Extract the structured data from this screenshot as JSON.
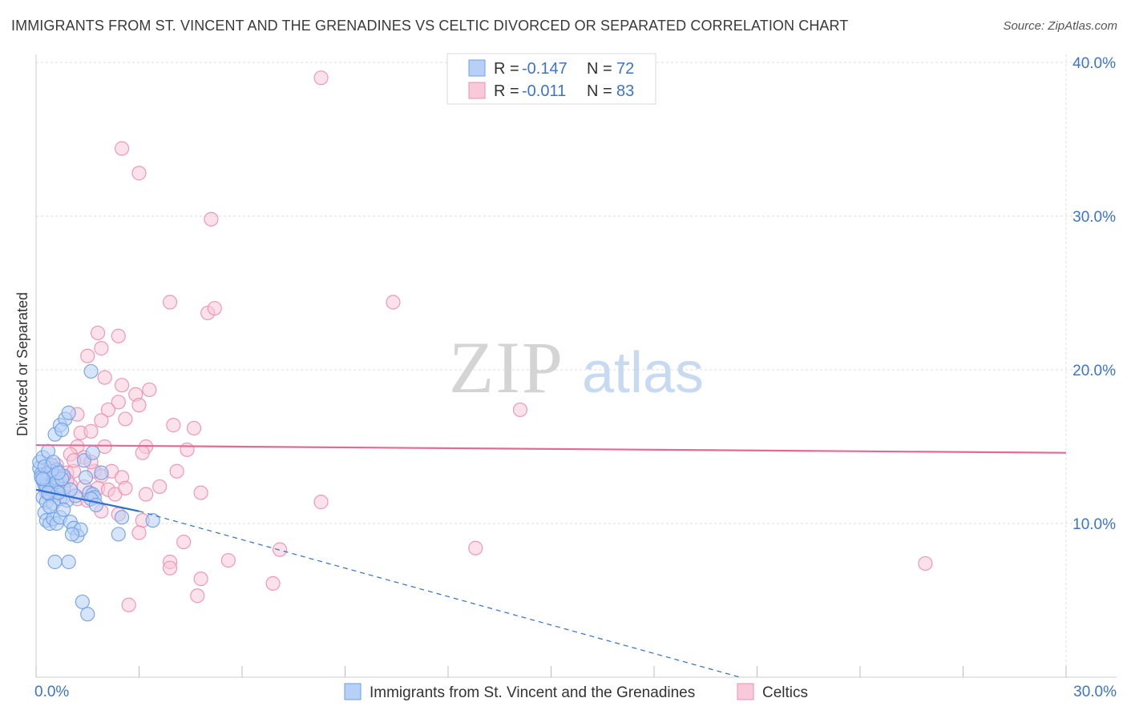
{
  "header": {
    "title": "IMMIGRANTS FROM ST. VINCENT AND THE GRENADINES VS CELTIC DIVORCED OR SEPARATED CORRELATION CHART",
    "source": "Source: ZipAtlas.com"
  },
  "watermark": {
    "zip": "ZIP",
    "atlas": "atlas"
  },
  "colors": {
    "blue": "#6f9fe6",
    "blue_fill": "#b7d0f5",
    "blue_line": "#2f6fd0",
    "pink": "#ec8fae",
    "pink_fill": "#f8c9d9",
    "pink_line": "#e46a94",
    "tick_text": "#3d74c7",
    "grid": "#dcdcdc"
  },
  "legend_top": {
    "rows": [
      {
        "r_label": "R = ",
        "r_value": "-0.147",
        "n_label": "N = ",
        "n_value": "72",
        "series": "blue"
      },
      {
        "r_label": "R = ",
        "r_value": "-0.011",
        "n_label": "N = ",
        "n_value": "83",
        "series": "pink"
      }
    ]
  },
  "legend_bottom": [
    {
      "label": "Immigrants from St. Vincent and the Grenadines",
      "series": "blue"
    },
    {
      "label": "Celtics",
      "series": "pink"
    }
  ],
  "chart_data": {
    "type": "scatter",
    "title": "IMMIGRANTS FROM ST. VINCENT AND THE GRENADINES VS CELTIC DIVORCED OR SEPARATED CORRELATION CHART",
    "xlabel": "",
    "ylabel": "Divorced or Separated",
    "xlim": [
      0,
      30
    ],
    "ylim": [
      0,
      40
    ],
    "x_tick_labels": [
      "0.0%",
      "30.0%"
    ],
    "y_ticks": [
      10,
      20,
      30,
      40
    ],
    "y_tick_labels": [
      "10.0%",
      "20.0%",
      "30.0%",
      "40.0%"
    ],
    "grid": true,
    "legend_position": "top-center",
    "series": [
      {
        "name": "Immigrants from St. Vincent and the Grenadines",
        "color": "blue",
        "R": -0.147,
        "N": 72,
        "trend": {
          "x0": 0,
          "y0": 12.2,
          "x1": 3.0,
          "y1": 10.8,
          "dashed_to_x": 20.5,
          "dashed_to_y": 0
        },
        "points": [
          [
            0.1,
            13.6
          ],
          [
            0.15,
            13.2
          ],
          [
            0.2,
            12.8
          ],
          [
            0.25,
            12.5
          ],
          [
            0.3,
            12.9
          ],
          [
            0.35,
            13.3
          ],
          [
            0.4,
            12.2
          ],
          [
            0.45,
            12.6
          ],
          [
            0.5,
            13.0
          ],
          [
            0.55,
            12.4
          ],
          [
            0.6,
            12.1
          ],
          [
            0.2,
            11.7
          ],
          [
            0.3,
            11.4
          ],
          [
            0.4,
            11.9
          ],
          [
            0.5,
            11.3
          ],
          [
            0.7,
            11.6
          ],
          [
            0.8,
            12.3
          ],
          [
            0.9,
            11.5
          ],
          [
            0.1,
            14.0
          ],
          [
            0.2,
            14.3
          ],
          [
            0.35,
            14.7
          ],
          [
            0.45,
            13.8
          ],
          [
            0.6,
            13.5
          ],
          [
            0.8,
            13.1
          ],
          [
            0.25,
            10.7
          ],
          [
            0.3,
            10.2
          ],
          [
            0.4,
            10.0
          ],
          [
            0.5,
            10.3
          ],
          [
            0.6,
            10.0
          ],
          [
            0.7,
            10.4
          ],
          [
            0.8,
            10.9
          ],
          [
            1.0,
            10.1
          ],
          [
            1.1,
            9.7
          ],
          [
            1.2,
            9.2
          ],
          [
            1.3,
            9.6
          ],
          [
            1.05,
            9.3
          ],
          [
            0.55,
            15.8
          ],
          [
            0.7,
            16.4
          ],
          [
            0.85,
            16.8
          ],
          [
            0.95,
            17.2
          ],
          [
            0.75,
            16.1
          ],
          [
            1.4,
            14.1
          ],
          [
            1.65,
            14.6
          ],
          [
            1.9,
            13.3
          ],
          [
            1.45,
            13.0
          ],
          [
            1.55,
            12.0
          ],
          [
            1.65,
            11.9
          ],
          [
            1.7,
            11.7
          ],
          [
            1.6,
            11.6
          ],
          [
            1.75,
            11.2
          ],
          [
            1.15,
            11.8
          ],
          [
            1.0,
            12.2
          ],
          [
            0.3,
            12.4
          ],
          [
            0.45,
            13.4
          ],
          [
            0.6,
            12.7
          ],
          [
            0.65,
            12.0
          ],
          [
            0.15,
            13.0
          ],
          [
            0.25,
            13.7
          ],
          [
            0.35,
            12.0
          ],
          [
            0.5,
            14.0
          ],
          [
            1.6,
            19.9
          ],
          [
            2.5,
            10.4
          ],
          [
            3.4,
            10.2
          ],
          [
            2.4,
            9.3
          ],
          [
            0.55,
            7.5
          ],
          [
            0.95,
            7.5
          ],
          [
            1.35,
            4.9
          ],
          [
            1.5,
            4.1
          ],
          [
            0.4,
            11.1
          ],
          [
            0.2,
            12.9
          ],
          [
            0.75,
            12.9
          ],
          [
            0.65,
            13.3
          ]
        ]
      },
      {
        "name": "Celtics",
        "color": "pink",
        "R": -0.011,
        "N": 83,
        "trend": {
          "x0": 0,
          "y0": 15.1,
          "x1": 30,
          "y1": 14.6
        },
        "points": [
          [
            8.3,
            39.0
          ],
          [
            2.5,
            34.4
          ],
          [
            3.0,
            32.8
          ],
          [
            5.1,
            29.8
          ],
          [
            3.9,
            24.4
          ],
          [
            5.0,
            23.7
          ],
          [
            5.2,
            24.0
          ],
          [
            10.4,
            24.4
          ],
          [
            1.8,
            22.4
          ],
          [
            2.4,
            22.2
          ],
          [
            1.9,
            21.4
          ],
          [
            1.5,
            20.9
          ],
          [
            2.0,
            19.5
          ],
          [
            2.5,
            19.0
          ],
          [
            2.9,
            18.4
          ],
          [
            3.3,
            18.7
          ],
          [
            2.4,
            17.9
          ],
          [
            3.0,
            17.7
          ],
          [
            2.1,
            17.4
          ],
          [
            1.9,
            16.7
          ],
          [
            2.6,
            16.8
          ],
          [
            1.2,
            17.1
          ],
          [
            4.0,
            16.4
          ],
          [
            4.6,
            16.2
          ],
          [
            14.1,
            17.4
          ],
          [
            1.3,
            15.9
          ],
          [
            1.6,
            16.0
          ],
          [
            1.2,
            15.0
          ],
          [
            2.0,
            15.0
          ],
          [
            3.2,
            15.0
          ],
          [
            4.4,
            14.8
          ],
          [
            3.1,
            14.6
          ],
          [
            1.0,
            14.5
          ],
          [
            1.4,
            14.3
          ],
          [
            0.4,
            13.6
          ],
          [
            0.6,
            13.8
          ],
          [
            0.9,
            13.3
          ],
          [
            1.1,
            13.4
          ],
          [
            1.7,
            13.4
          ],
          [
            2.2,
            13.4
          ],
          [
            4.1,
            13.4
          ],
          [
            1.9,
            13.1
          ],
          [
            2.5,
            13.0
          ],
          [
            0.3,
            12.7
          ],
          [
            0.5,
            12.9
          ],
          [
            0.7,
            12.6
          ],
          [
            1.0,
            12.5
          ],
          [
            1.4,
            12.4
          ],
          [
            1.8,
            12.3
          ],
          [
            2.1,
            12.2
          ],
          [
            3.6,
            12.4
          ],
          [
            4.8,
            12.0
          ],
          [
            0.3,
            12.0
          ],
          [
            0.5,
            11.8
          ],
          [
            0.8,
            11.7
          ],
          [
            1.2,
            11.6
          ],
          [
            1.5,
            11.5
          ],
          [
            2.3,
            11.9
          ],
          [
            3.2,
            11.9
          ],
          [
            8.3,
            11.4
          ],
          [
            1.9,
            10.8
          ],
          [
            2.4,
            10.6
          ],
          [
            3.1,
            10.2
          ],
          [
            3.0,
            9.4
          ],
          [
            4.3,
            8.8
          ],
          [
            7.1,
            8.3
          ],
          [
            12.8,
            8.4
          ],
          [
            3.9,
            7.5
          ],
          [
            5.6,
            7.6
          ],
          [
            3.9,
            7.1
          ],
          [
            4.8,
            6.4
          ],
          [
            6.9,
            6.1
          ],
          [
            4.7,
            5.3
          ],
          [
            2.7,
            4.7
          ],
          [
            25.9,
            7.4
          ],
          [
            0.2,
            13.0
          ],
          [
            0.6,
            13.1
          ],
          [
            0.4,
            12.3
          ],
          [
            1.1,
            14.1
          ],
          [
            0.8,
            13.0
          ],
          [
            2.6,
            12.3
          ],
          [
            1.6,
            14.0
          ],
          [
            0.9,
            12.8
          ]
        ]
      }
    ]
  }
}
